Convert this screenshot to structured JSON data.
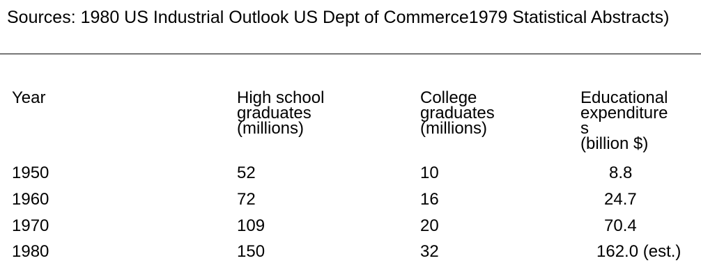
{
  "source_note": "Sources: 1980 US Industrial Outlook US Dept of Commerce1979 Statistical Abstracts)",
  "table": {
    "headers": [
      [
        "Year"
      ],
      [
        "High school",
        "graduates",
        "(millions)"
      ],
      [
        "College",
        "graduates",
        "(millions)"
      ],
      [
        "Educational",
        "expenditure",
        "s",
        "(billion $)"
      ]
    ],
    "rows": [
      {
        "year": "1950",
        "high_school": "52",
        "college": "10",
        "expenditure": "8.8"
      },
      {
        "year": "1960",
        "high_school": "72",
        "college": "16",
        "expenditure": "24.7"
      },
      {
        "year": "1970",
        "high_school": "109",
        "college": "20",
        "expenditure": "70.4"
      },
      {
        "year": "1980",
        "high_school": "150",
        "college": "32",
        "expenditure": "162.0 (est.)"
      }
    ]
  }
}
